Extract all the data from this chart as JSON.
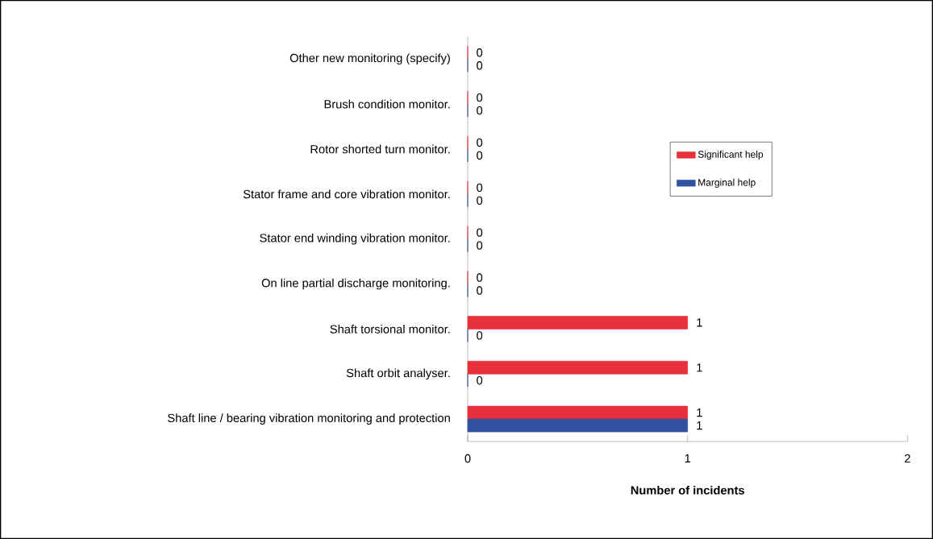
{
  "chart_data": {
    "type": "bar",
    "orientation": "horizontal",
    "categories": [
      "Other new monitoring (specify)",
      "Brush condition monitor.",
      "Rotor shorted turn monitor.",
      "Stator frame and core vibration monitor.",
      "Stator end winding vibration monitor.",
      "On line partial discharge monitoring.",
      "Shaft torsional monitor.",
      "Shaft orbit analyser.",
      "Shaft line / bearing vibration monitoring and protection"
    ],
    "series": [
      {
        "name": "Significant help",
        "color": "#e8303a",
        "values": [
          0,
          0,
          0,
          0,
          0,
          0,
          1,
          1,
          1
        ]
      },
      {
        "name": "Marginal help",
        "color": "#3050a0",
        "values": [
          0,
          0,
          0,
          0,
          0,
          0,
          0,
          0,
          1
        ]
      }
    ],
    "xlabel": "Number of incidents",
    "xlim": [
      0,
      2
    ],
    "xticks": [
      0,
      1,
      2
    ],
    "data_labels": true,
    "legend": "right",
    "grid": false
  }
}
